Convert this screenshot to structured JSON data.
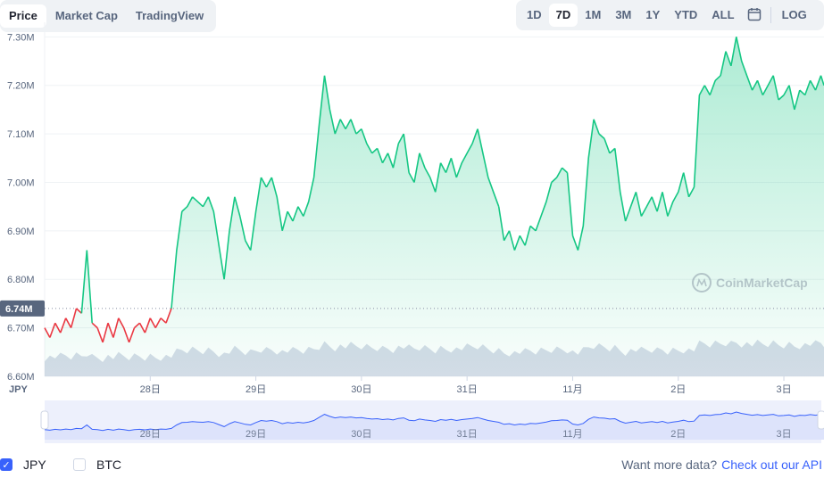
{
  "tabs": [
    "Price",
    "Market Cap",
    "TradingView"
  ],
  "active_tab": "Price",
  "ranges": [
    "1D",
    "7D",
    "1M",
    "3M",
    "1Y",
    "YTD",
    "ALL"
  ],
  "active_range": "7D",
  "log_label": "LOG",
  "icons": {
    "calendar": "calendar-icon",
    "logo": "coinmarketcap-logo-icon",
    "check": "check-icon"
  },
  "watermark": "CoinMarketCap",
  "currency_label": "JPY",
  "current_price_label": "6.74M",
  "y_ticks": [
    {
      "label": "7.30M",
      "value": 7.3
    },
    {
      "label": "7.20M",
      "value": 7.2
    },
    {
      "label": "7.10M",
      "value": 7.1
    },
    {
      "label": "7.00M",
      "value": 7.0
    },
    {
      "label": "6.90M",
      "value": 6.9
    },
    {
      "label": "6.80M",
      "value": 6.8
    },
    {
      "label": "6.70M",
      "value": 6.7
    },
    {
      "label": "6.60M",
      "value": 6.6
    }
  ],
  "x_ticks": [
    {
      "label": "28日",
      "day": 0.5
    },
    {
      "label": "29日",
      "day": 1.5
    },
    {
      "label": "30日",
      "day": 2.5
    },
    {
      "label": "31日",
      "day": 3.5
    },
    {
      "label": "11月",
      "day": 4.5
    },
    {
      "label": "2日",
      "day": 5.5
    },
    {
      "label": "3日",
      "day": 6.5
    }
  ],
  "colors": {
    "up": "#16c784",
    "down": "#ea3943",
    "volume": "#cfd6e4",
    "nav": "#3861fb",
    "muted": "#58667e",
    "grid": "#eff2f5"
  },
  "chart_data": {
    "type": "line",
    "xlabel": "",
    "ylabel": "",
    "x_unit": "days",
    "ylim": [
      6.6,
      7.33
    ],
    "x_range": [
      -0.5,
      6.88
    ],
    "reference_price": 6.74,
    "price": [
      [
        -0.5,
        6.7
      ],
      [
        -0.45,
        6.68
      ],
      [
        -0.4,
        6.71
      ],
      [
        -0.35,
        6.69
      ],
      [
        -0.3,
        6.72
      ],
      [
        -0.25,
        6.7
      ],
      [
        -0.2,
        6.74
      ],
      [
        -0.15,
        6.73
      ],
      [
        -0.1,
        6.86
      ],
      [
        -0.05,
        6.71
      ],
      [
        0.0,
        6.7
      ],
      [
        0.05,
        6.67
      ],
      [
        0.1,
        6.71
      ],
      [
        0.15,
        6.68
      ],
      [
        0.2,
        6.72
      ],
      [
        0.25,
        6.7
      ],
      [
        0.3,
        6.67
      ],
      [
        0.35,
        6.7
      ],
      [
        0.4,
        6.71
      ],
      [
        0.45,
        6.69
      ],
      [
        0.5,
        6.72
      ],
      [
        0.55,
        6.7
      ],
      [
        0.6,
        6.72
      ],
      [
        0.65,
        6.71
      ],
      [
        0.7,
        6.74
      ],
      [
        0.75,
        6.86
      ],
      [
        0.8,
        6.94
      ],
      [
        0.85,
        6.95
      ],
      [
        0.9,
        6.97
      ],
      [
        0.95,
        6.96
      ],
      [
        1.0,
        6.95
      ],
      [
        1.05,
        6.97
      ],
      [
        1.1,
        6.94
      ],
      [
        1.15,
        6.87
      ],
      [
        1.2,
        6.8
      ],
      [
        1.25,
        6.9
      ],
      [
        1.3,
        6.97
      ],
      [
        1.35,
        6.93
      ],
      [
        1.4,
        6.88
      ],
      [
        1.45,
        6.86
      ],
      [
        1.5,
        6.94
      ],
      [
        1.55,
        7.01
      ],
      [
        1.6,
        6.99
      ],
      [
        1.65,
        7.01
      ],
      [
        1.7,
        6.97
      ],
      [
        1.75,
        6.9
      ],
      [
        1.8,
        6.94
      ],
      [
        1.85,
        6.92
      ],
      [
        1.9,
        6.95
      ],
      [
        1.95,
        6.93
      ],
      [
        2.0,
        6.96
      ],
      [
        2.05,
        7.01
      ],
      [
        2.1,
        7.12
      ],
      [
        2.15,
        7.22
      ],
      [
        2.2,
        7.15
      ],
      [
        2.25,
        7.1
      ],
      [
        2.3,
        7.13
      ],
      [
        2.35,
        7.11
      ],
      [
        2.4,
        7.13
      ],
      [
        2.45,
        7.1
      ],
      [
        2.5,
        7.11
      ],
      [
        2.55,
        7.08
      ],
      [
        2.6,
        7.06
      ],
      [
        2.65,
        7.07
      ],
      [
        2.7,
        7.04
      ],
      [
        2.75,
        7.06
      ],
      [
        2.8,
        7.03
      ],
      [
        2.85,
        7.08
      ],
      [
        2.9,
        7.1
      ],
      [
        2.95,
        7.02
      ],
      [
        3.0,
        7.0
      ],
      [
        3.05,
        7.06
      ],
      [
        3.1,
        7.03
      ],
      [
        3.15,
        7.01
      ],
      [
        3.2,
        6.98
      ],
      [
        3.25,
        7.04
      ],
      [
        3.3,
        7.02
      ],
      [
        3.35,
        7.05
      ],
      [
        3.4,
        7.01
      ],
      [
        3.45,
        7.04
      ],
      [
        3.5,
        7.06
      ],
      [
        3.55,
        7.08
      ],
      [
        3.6,
        7.11
      ],
      [
        3.65,
        7.06
      ],
      [
        3.7,
        7.01
      ],
      [
        3.75,
        6.98
      ],
      [
        3.8,
        6.95
      ],
      [
        3.85,
        6.88
      ],
      [
        3.9,
        6.9
      ],
      [
        3.95,
        6.86
      ],
      [
        4.0,
        6.89
      ],
      [
        4.05,
        6.87
      ],
      [
        4.1,
        6.91
      ],
      [
        4.15,
        6.9
      ],
      [
        4.2,
        6.93
      ],
      [
        4.25,
        6.96
      ],
      [
        4.3,
        7.0
      ],
      [
        4.35,
        7.01
      ],
      [
        4.4,
        7.03
      ],
      [
        4.45,
        7.02
      ],
      [
        4.5,
        6.89
      ],
      [
        4.55,
        6.86
      ],
      [
        4.6,
        6.91
      ],
      [
        4.65,
        7.05
      ],
      [
        4.7,
        7.13
      ],
      [
        4.75,
        7.1
      ],
      [
        4.8,
        7.09
      ],
      [
        4.85,
        7.06
      ],
      [
        4.9,
        7.07
      ],
      [
        4.95,
        6.98
      ],
      [
        5.0,
        6.92
      ],
      [
        5.05,
        6.95
      ],
      [
        5.1,
        6.98
      ],
      [
        5.15,
        6.93
      ],
      [
        5.2,
        6.95
      ],
      [
        5.25,
        6.97
      ],
      [
        5.3,
        6.94
      ],
      [
        5.35,
        6.98
      ],
      [
        5.4,
        6.93
      ],
      [
        5.45,
        6.96
      ],
      [
        5.5,
        6.98
      ],
      [
        5.55,
        7.02
      ],
      [
        5.6,
        6.97
      ],
      [
        5.65,
        6.99
      ],
      [
        5.7,
        7.18
      ],
      [
        5.75,
        7.2
      ],
      [
        5.8,
        7.18
      ],
      [
        5.85,
        7.21
      ],
      [
        5.9,
        7.22
      ],
      [
        5.95,
        7.27
      ],
      [
        6.0,
        7.24
      ],
      [
        6.05,
        7.3
      ],
      [
        6.1,
        7.25
      ],
      [
        6.15,
        7.22
      ],
      [
        6.2,
        7.19
      ],
      [
        6.25,
        7.21
      ],
      [
        6.3,
        7.18
      ],
      [
        6.35,
        7.2
      ],
      [
        6.4,
        7.22
      ],
      [
        6.45,
        7.17
      ],
      [
        6.5,
        7.18
      ],
      [
        6.55,
        7.2
      ],
      [
        6.6,
        7.15
      ],
      [
        6.65,
        7.19
      ],
      [
        6.7,
        7.18
      ],
      [
        6.75,
        7.21
      ],
      [
        6.8,
        7.19
      ],
      [
        6.85,
        7.22
      ],
      [
        6.88,
        7.2
      ]
    ]
  },
  "footer": {
    "currency_a": "JPY",
    "currency_b": "BTC",
    "promo_text": "Want more data?",
    "promo_link": "Check out our API"
  }
}
